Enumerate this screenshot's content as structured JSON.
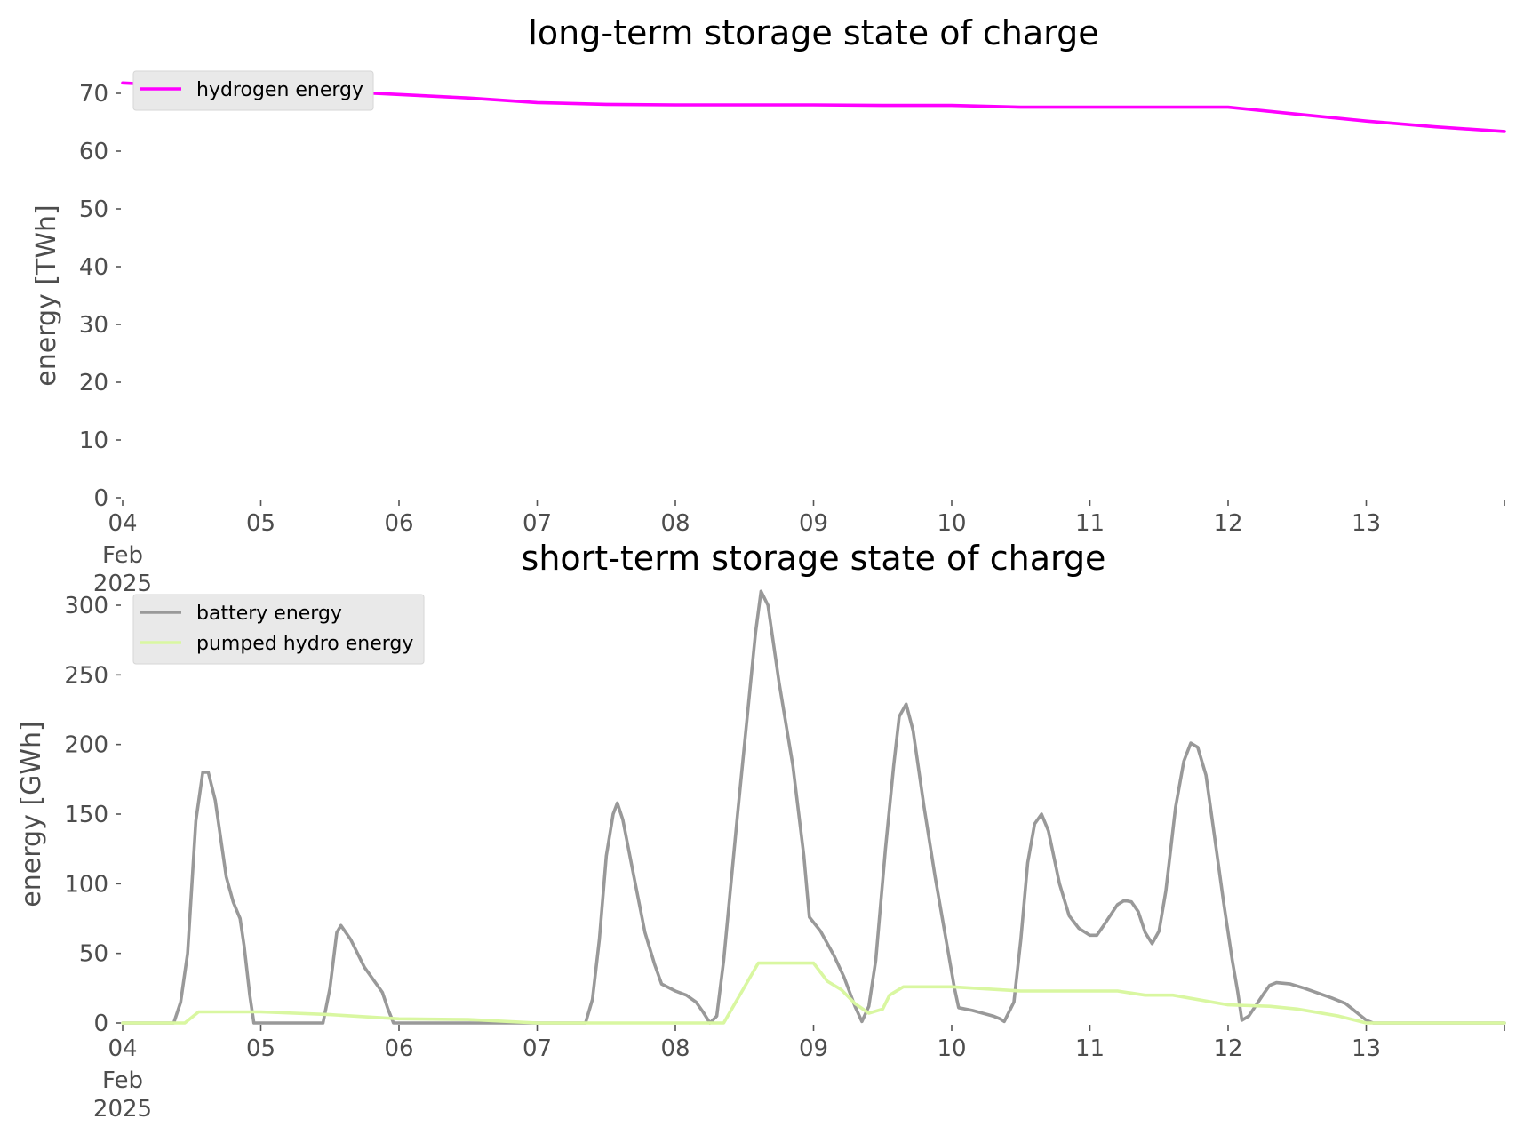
{
  "chart_data": [
    {
      "type": "line",
      "title": "long-term storage state of charge",
      "xlabel": "",
      "ylabel": "energy [TWh]",
      "xlim": [
        "2025-02-04",
        "2025-02-14"
      ],
      "ylim": [
        0,
        75
      ],
      "yticks": [
        0,
        10,
        20,
        30,
        40,
        50,
        60,
        70
      ],
      "xticks": [
        {
          "day": 0,
          "label": "04",
          "sub": [
            "Feb",
            "2025"
          ]
        },
        {
          "day": 1,
          "label": "05"
        },
        {
          "day": 2,
          "label": "06"
        },
        {
          "day": 3,
          "label": "07"
        },
        {
          "day": 4,
          "label": "08"
        },
        {
          "day": 5,
          "label": "09"
        },
        {
          "day": 6,
          "label": "10"
        },
        {
          "day": 7,
          "label": "11"
        },
        {
          "day": 8,
          "label": "12"
        },
        {
          "day": 9,
          "label": "13"
        },
        {
          "day": 10,
          "label": ""
        }
      ],
      "grid": false,
      "legend": "top-left",
      "series": [
        {
          "name": "hydrogen energy",
          "color": "#ff00ff",
          "points": [
            [
              0,
              71.8
            ],
            [
              0.5,
              71.2
            ],
            [
              1,
              70.8
            ],
            [
              1.5,
              70.4
            ],
            [
              2,
              69.8
            ],
            [
              2.5,
              69.2
            ],
            [
              3,
              68.4
            ],
            [
              3.5,
              68.1
            ],
            [
              4,
              68.0
            ],
            [
              4.5,
              68.0
            ],
            [
              5,
              68.0
            ],
            [
              5.5,
              67.9
            ],
            [
              6,
              67.9
            ],
            [
              6.5,
              67.6
            ],
            [
              7,
              67.6
            ],
            [
              7.5,
              67.6
            ],
            [
              8,
              67.6
            ],
            [
              8.5,
              66.4
            ],
            [
              9,
              65.2
            ],
            [
              9.5,
              64.2
            ],
            [
              10,
              63.4
            ]
          ]
        }
      ]
    },
    {
      "type": "line",
      "title": "short-term storage state of charge",
      "xlabel": "",
      "ylabel": "energy [GWh]",
      "xlim": [
        "2025-02-04",
        "2025-02-14"
      ],
      "ylim": [
        0,
        320
      ],
      "yticks": [
        0,
        50,
        100,
        150,
        200,
        250,
        300
      ],
      "xticks": [
        {
          "day": 0,
          "label": "04",
          "sub": [
            "Feb",
            "2025"
          ]
        },
        {
          "day": 1,
          "label": "05"
        },
        {
          "day": 2,
          "label": "06"
        },
        {
          "day": 3,
          "label": "07"
        },
        {
          "day": 4,
          "label": "08"
        },
        {
          "day": 5,
          "label": "09"
        },
        {
          "day": 6,
          "label": "10"
        },
        {
          "day": 7,
          "label": "11"
        },
        {
          "day": 8,
          "label": "12"
        },
        {
          "day": 9,
          "label": "13"
        },
        {
          "day": 10,
          "label": ""
        }
      ],
      "grid": false,
      "legend": "top-left",
      "series": [
        {
          "name": "battery energy",
          "color": "#999999",
          "points": [
            [
              0,
              0
            ],
            [
              0.37,
              0
            ],
            [
              0.42,
              15
            ],
            [
              0.47,
              50
            ],
            [
              0.53,
              145
            ],
            [
              0.58,
              180
            ],
            [
              0.62,
              180
            ],
            [
              0.67,
              160
            ],
            [
              0.75,
              105
            ],
            [
              0.8,
              87
            ],
            [
              0.85,
              75
            ],
            [
              0.88,
              55
            ],
            [
              0.92,
              20
            ],
            [
              0.95,
              0
            ],
            [
              1.45,
              0
            ],
            [
              1.5,
              25
            ],
            [
              1.55,
              65
            ],
            [
              1.58,
              70
            ],
            [
              1.65,
              60
            ],
            [
              1.75,
              40
            ],
            [
              1.88,
              22
            ],
            [
              1.92,
              10
            ],
            [
              1.96,
              0
            ],
            [
              3.35,
              0
            ],
            [
              3.4,
              17
            ],
            [
              3.45,
              60
            ],
            [
              3.5,
              120
            ],
            [
              3.55,
              150
            ],
            [
              3.58,
              158
            ],
            [
              3.62,
              146
            ],
            [
              3.7,
              105
            ],
            [
              3.78,
              65
            ],
            [
              3.85,
              42
            ],
            [
              3.9,
              28
            ],
            [
              4.0,
              23
            ],
            [
              4.08,
              20
            ],
            [
              4.15,
              15
            ],
            [
              4.2,
              8
            ],
            [
              4.25,
              0
            ],
            [
              4.3,
              5
            ],
            [
              4.35,
              45
            ],
            [
              4.45,
              150
            ],
            [
              4.52,
              220
            ],
            [
              4.58,
              280
            ],
            [
              4.62,
              310
            ],
            [
              4.67,
              300
            ],
            [
              4.75,
              245
            ],
            [
              4.85,
              185
            ],
            [
              4.93,
              120
            ],
            [
              4.97,
              76
            ],
            [
              5.05,
              66
            ],
            [
              5.15,
              48
            ],
            [
              5.22,
              33
            ],
            [
              5.3,
              12
            ],
            [
              5.35,
              1
            ],
            [
              5.4,
              12
            ],
            [
              5.45,
              45
            ],
            [
              5.52,
              125
            ],
            [
              5.58,
              185
            ],
            [
              5.62,
              220
            ],
            [
              5.67,
              229
            ],
            [
              5.72,
              210
            ],
            [
              5.8,
              155
            ],
            [
              5.88,
              105
            ],
            [
              5.95,
              65
            ],
            [
              6.02,
              25
            ],
            [
              6.05,
              11
            ],
            [
              6.15,
              9
            ],
            [
              6.3,
              5
            ],
            [
              6.35,
              3
            ],
            [
              6.38,
              1
            ],
            [
              6.45,
              15
            ],
            [
              6.5,
              60
            ],
            [
              6.55,
              115
            ],
            [
              6.6,
              143
            ],
            [
              6.65,
              150
            ],
            [
              6.7,
              138
            ],
            [
              6.78,
              100
            ],
            [
              6.85,
              77
            ],
            [
              6.92,
              68
            ],
            [
              7.0,
              63
            ],
            [
              7.05,
              63
            ],
            [
              7.1,
              70
            ],
            [
              7.2,
              85
            ],
            [
              7.25,
              88
            ],
            [
              7.3,
              87
            ],
            [
              7.35,
              80
            ],
            [
              7.4,
              65
            ],
            [
              7.45,
              57
            ],
            [
              7.5,
              66
            ],
            [
              7.55,
              95
            ],
            [
              7.62,
              155
            ],
            [
              7.68,
              188
            ],
            [
              7.73,
              201
            ],
            [
              7.78,
              198
            ],
            [
              7.84,
              178
            ],
            [
              7.9,
              135
            ],
            [
              7.97,
              85
            ],
            [
              8.03,
              45
            ],
            [
              8.07,
              22
            ],
            [
              8.1,
              2
            ],
            [
              8.15,
              5
            ],
            [
              8.25,
              20
            ],
            [
              8.3,
              27
            ],
            [
              8.35,
              29
            ],
            [
              8.45,
              28
            ],
            [
              8.55,
              25
            ],
            [
              8.75,
              18
            ],
            [
              8.85,
              14
            ],
            [
              8.9,
              10
            ],
            [
              8.95,
              6
            ],
            [
              9.0,
              2
            ],
            [
              9.05,
              0
            ],
            [
              10.0,
              0
            ]
          ]
        },
        {
          "name": "pumped hydro energy",
          "color": "#d9f7a1",
          "points": [
            [
              0,
              0
            ],
            [
              0.45,
              0
            ],
            [
              0.55,
              8
            ],
            [
              1.0,
              8
            ],
            [
              1.5,
              6
            ],
            [
              2.0,
              3
            ],
            [
              2.5,
              2.5
            ],
            [
              3.0,
              0
            ],
            [
              4.35,
              0
            ],
            [
              4.6,
              43
            ],
            [
              5.0,
              43
            ],
            [
              5.1,
              30
            ],
            [
              5.2,
              24
            ],
            [
              5.3,
              14
            ],
            [
              5.4,
              7
            ],
            [
              5.5,
              10
            ],
            [
              5.55,
              20
            ],
            [
              5.65,
              26
            ],
            [
              6.0,
              26
            ],
            [
              6.5,
              23
            ],
            [
              7.0,
              23
            ],
            [
              7.2,
              23
            ],
            [
              7.4,
              20
            ],
            [
              7.6,
              20
            ],
            [
              8.0,
              13
            ],
            [
              8.3,
              12
            ],
            [
              8.5,
              10
            ],
            [
              8.8,
              5
            ],
            [
              9.0,
              0
            ],
            [
              10.0,
              0
            ]
          ]
        }
      ]
    }
  ]
}
